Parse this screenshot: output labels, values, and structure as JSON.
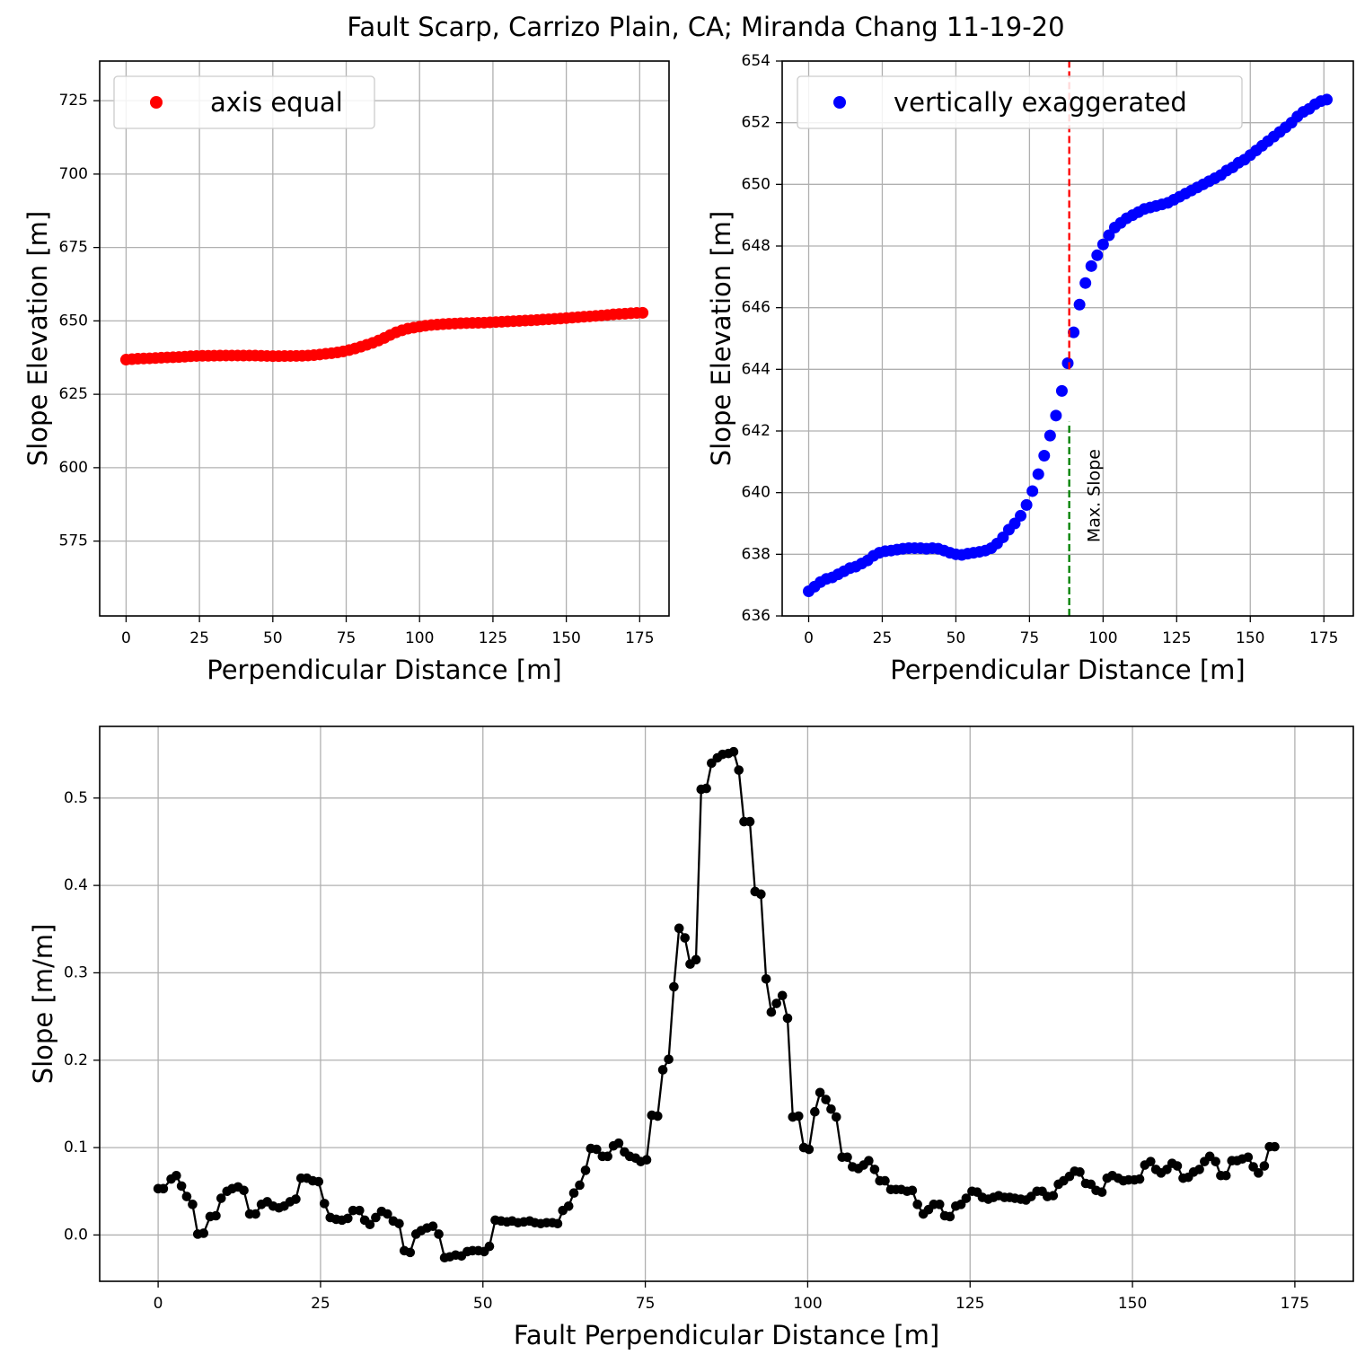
{
  "figure": {
    "title": "Fault Scarp, Carrizo Plain, CA; Miranda Chang 11-19-20"
  },
  "chart_data": [
    {
      "id": "axis-equal",
      "type": "scatter",
      "xlabel": "Perpendicular Distance [m]",
      "ylabel": "Slope Elevation [m]",
      "xlim": [
        -9,
        185
      ],
      "ylim": [
        549.5,
        738.5
      ],
      "xticks": [
        0,
        25,
        50,
        75,
        100,
        125,
        150,
        175
      ],
      "yticks": [
        575,
        600,
        625,
        650,
        675,
        700,
        725
      ],
      "grid": true,
      "legend": {
        "placement": "upper-left"
      },
      "series": [
        {
          "name": "axis equal",
          "color": "#ff0000",
          "profile": "elevation"
        }
      ]
    },
    {
      "id": "vertically-exaggerated",
      "type": "scatter",
      "xlabel": "Perpendicular Distance [m]",
      "ylabel": "Slope Elevation [m]",
      "xlim": [
        -9,
        185
      ],
      "ylim": [
        636,
        654
      ],
      "xticks": [
        0,
        25,
        50,
        75,
        100,
        125,
        150,
        175
      ],
      "yticks": [
        636,
        638,
        640,
        642,
        644,
        646,
        648,
        650,
        652,
        654
      ],
      "grid": true,
      "legend": {
        "placement": "upper-left"
      },
      "series": [
        {
          "name": "vertically exaggerated",
          "color": "#0000ff",
          "profile": "elevation"
        }
      ],
      "vlines": [
        {
          "x": 88.5,
          "y_from": 636,
          "y_to": 642.3,
          "color": "#008000",
          "style": "dashed"
        },
        {
          "x": 88.5,
          "y_from": 644.0,
          "y_to": 654,
          "color": "#ff0000",
          "style": "dashed"
        }
      ],
      "annotations": [
        {
          "text": "Max. Slope",
          "x": 97,
          "y": 639.9,
          "rotation": -90
        }
      ]
    },
    {
      "id": "slope",
      "type": "line",
      "xlabel": "Fault Perpendicular Distance [m]",
      "ylabel": "Slope [m/m]",
      "xlim": [
        -9,
        184
      ],
      "ylim": [
        -0.053,
        0.582
      ],
      "xticks": [
        0,
        25,
        50,
        75,
        100,
        125,
        150,
        175
      ],
      "yticks": [
        0.0,
        0.1,
        0.2,
        0.3,
        0.4,
        0.5
      ],
      "ytick_labels": [
        "0.0",
        "0.1",
        "0.2",
        "0.3",
        "0.4",
        "0.5"
      ],
      "grid": true,
      "color": "#000000",
      "marker": "circle",
      "points": [
        [
          0,
          0.053
        ],
        [
          0.8,
          0.053
        ],
        [
          2,
          0.064
        ],
        [
          2.8,
          0.068
        ],
        [
          3.6,
          0.056
        ],
        [
          4.4,
          0.044
        ],
        [
          5.3,
          0.035
        ],
        [
          6.1,
          0.001
        ],
        [
          7,
          0.002
        ],
        [
          8,
          0.021
        ],
        [
          8.9,
          0.022
        ],
        [
          9.7,
          0.042
        ],
        [
          10.6,
          0.05
        ],
        [
          11.4,
          0.053
        ],
        [
          12.3,
          0.055
        ],
        [
          13.2,
          0.051
        ],
        [
          14.1,
          0.024
        ],
        [
          15,
          0.024
        ],
        [
          15.9,
          0.035
        ],
        [
          16.8,
          0.038
        ],
        [
          17.7,
          0.033
        ],
        [
          18.6,
          0.031
        ],
        [
          19.4,
          0.033
        ],
        [
          20.3,
          0.038
        ],
        [
          21.2,
          0.041
        ],
        [
          22,
          0.065
        ],
        [
          22.9,
          0.065
        ],
        [
          23.8,
          0.062
        ],
        [
          24.7,
          0.061
        ],
        [
          25.6,
          0.036
        ],
        [
          26.5,
          0.02
        ],
        [
          27.4,
          0.018
        ],
        [
          28.3,
          0.017
        ],
        [
          29.2,
          0.019
        ],
        [
          30,
          0.028
        ],
        [
          31,
          0.028
        ],
        [
          31.8,
          0.017
        ],
        [
          32.6,
          0.012
        ],
        [
          33.5,
          0.02
        ],
        [
          34.4,
          0.027
        ],
        [
          35.3,
          0.024
        ],
        [
          36.2,
          0.016
        ],
        [
          37.1,
          0.013
        ],
        [
          37.9,
          -0.018
        ],
        [
          38.8,
          -0.02
        ],
        [
          39.7,
          0.001
        ],
        [
          40.5,
          0.005
        ],
        [
          41.4,
          0.008
        ],
        [
          42.3,
          0.01
        ],
        [
          43.2,
          0.001
        ],
        [
          44.1,
          -0.026
        ],
        [
          44.9,
          -0.025
        ],
        [
          45.8,
          -0.023
        ],
        [
          46.7,
          -0.024
        ],
        [
          47.6,
          -0.019
        ],
        [
          48.4,
          -0.018
        ],
        [
          49.3,
          -0.018
        ],
        [
          50.2,
          -0.019
        ],
        [
          51,
          -0.013
        ],
        [
          51.9,
          0.017
        ],
        [
          52.8,
          0.016
        ],
        [
          53.7,
          0.015
        ],
        [
          54.5,
          0.016
        ],
        [
          55.4,
          0.014
        ],
        [
          56.3,
          0.015
        ],
        [
          57.2,
          0.016
        ],
        [
          58,
          0.014
        ],
        [
          58.9,
          0.013
        ],
        [
          59.8,
          0.014
        ],
        [
          60.7,
          0.014
        ],
        [
          61.5,
          0.013
        ],
        [
          62.3,
          0.028
        ],
        [
          63.2,
          0.033
        ],
        [
          64,
          0.048
        ],
        [
          64.9,
          0.057
        ],
        [
          65.8,
          0.074
        ],
        [
          66.6,
          0.099
        ],
        [
          67.5,
          0.098
        ],
        [
          68.4,
          0.09
        ],
        [
          69.2,
          0.09
        ],
        [
          70.1,
          0.102
        ],
        [
          70.9,
          0.105
        ],
        [
          71.8,
          0.095
        ],
        [
          72.6,
          0.09
        ],
        [
          73.5,
          0.088
        ],
        [
          74.3,
          0.084
        ],
        [
          75.2,
          0.086
        ],
        [
          76,
          0.137
        ],
        [
          76.9,
          0.136
        ],
        [
          77.7,
          0.189
        ],
        [
          78.6,
          0.201
        ],
        [
          79.4,
          0.284
        ],
        [
          80.2,
          0.351
        ],
        [
          81.1,
          0.34
        ],
        [
          81.9,
          0.31
        ],
        [
          82.8,
          0.315
        ],
        [
          83.6,
          0.51
        ],
        [
          84.4,
          0.511
        ],
        [
          85.2,
          0.54
        ],
        [
          86.1,
          0.546
        ],
        [
          86.9,
          0.55
        ],
        [
          87.8,
          0.551
        ],
        [
          88.6,
          0.553
        ],
        [
          89.4,
          0.532
        ],
        [
          90.2,
          0.473
        ],
        [
          91.1,
          0.473
        ],
        [
          91.9,
          0.393
        ],
        [
          92.8,
          0.39
        ],
        [
          93.6,
          0.293
        ],
        [
          94.4,
          0.255
        ],
        [
          95.2,
          0.265
        ],
        [
          96.1,
          0.274
        ],
        [
          96.9,
          0.248
        ],
        [
          97.7,
          0.135
        ],
        [
          98.6,
          0.136
        ],
        [
          99.4,
          0.1
        ],
        [
          100.2,
          0.098
        ],
        [
          101.1,
          0.141
        ],
        [
          101.9,
          0.163
        ],
        [
          102.8,
          0.155
        ],
        [
          103.6,
          0.144
        ],
        [
          104.4,
          0.135
        ],
        [
          105.3,
          0.089
        ],
        [
          106.1,
          0.089
        ],
        [
          106.9,
          0.078
        ],
        [
          107.8,
          0.076
        ],
        [
          108.6,
          0.08
        ],
        [
          109.4,
          0.085
        ],
        [
          110.3,
          0.075
        ],
        [
          111.1,
          0.062
        ],
        [
          111.9,
          0.062
        ],
        [
          112.8,
          0.052
        ],
        [
          113.6,
          0.052
        ],
        [
          114.4,
          0.052
        ],
        [
          115.3,
          0.05
        ],
        [
          116.1,
          0.051
        ],
        [
          116.9,
          0.035
        ],
        [
          117.8,
          0.024
        ],
        [
          118.6,
          0.029
        ],
        [
          119.4,
          0.035
        ],
        [
          120.3,
          0.035
        ],
        [
          121.1,
          0.022
        ],
        [
          121.9,
          0.021
        ],
        [
          122.8,
          0.033
        ],
        [
          123.6,
          0.035
        ],
        [
          124.4,
          0.042
        ],
        [
          125.3,
          0.05
        ],
        [
          126.1,
          0.049
        ],
        [
          126.9,
          0.043
        ],
        [
          127.8,
          0.041
        ],
        [
          128.6,
          0.043
        ],
        [
          129.4,
          0.045
        ],
        [
          130.3,
          0.043
        ],
        [
          131.1,
          0.043
        ],
        [
          131.9,
          0.042
        ],
        [
          132.8,
          0.041
        ],
        [
          133.6,
          0.04
        ],
        [
          134.4,
          0.044
        ],
        [
          135.3,
          0.05
        ],
        [
          136.1,
          0.05
        ],
        [
          136.9,
          0.044
        ],
        [
          137.8,
          0.045
        ],
        [
          138.6,
          0.058
        ],
        [
          139.4,
          0.062
        ],
        [
          140.3,
          0.067
        ],
        [
          141.1,
          0.073
        ],
        [
          141.9,
          0.072
        ],
        [
          142.8,
          0.059
        ],
        [
          143.6,
          0.058
        ],
        [
          144.4,
          0.051
        ],
        [
          145.3,
          0.049
        ],
        [
          146.1,
          0.065
        ],
        [
          146.9,
          0.068
        ],
        [
          147.8,
          0.065
        ],
        [
          148.6,
          0.062
        ],
        [
          149.4,
          0.063
        ],
        [
          150.3,
          0.063
        ],
        [
          151.1,
          0.064
        ],
        [
          151.9,
          0.08
        ],
        [
          152.8,
          0.084
        ],
        [
          153.6,
          0.075
        ],
        [
          154.4,
          0.071
        ],
        [
          155.3,
          0.075
        ],
        [
          156.1,
          0.082
        ],
        [
          156.9,
          0.079
        ],
        [
          157.8,
          0.065
        ],
        [
          158.6,
          0.066
        ],
        [
          159.4,
          0.072
        ],
        [
          160.3,
          0.075
        ],
        [
          161.1,
          0.084
        ],
        [
          161.9,
          0.09
        ],
        [
          162.8,
          0.084
        ],
        [
          163.6,
          0.068
        ],
        [
          164.4,
          0.068
        ],
        [
          165.3,
          0.085
        ],
        [
          166.1,
          0.085
        ],
        [
          166.9,
          0.087
        ],
        [
          167.8,
          0.089
        ],
        [
          168.6,
          0.078
        ],
        [
          169.4,
          0.071
        ],
        [
          170.3,
          0.079
        ],
        [
          171.1,
          0.101
        ],
        [
          171.9,
          0.101
        ]
      ]
    }
  ],
  "elevation_profile": [
    [
      0,
      636.8
    ],
    [
      2,
      636.95
    ],
    [
      4,
      637.1
    ],
    [
      6,
      637.2
    ],
    [
      8,
      637.25
    ],
    [
      10,
      637.35
    ],
    [
      12,
      637.45
    ],
    [
      14,
      637.55
    ],
    [
      16,
      637.6
    ],
    [
      18,
      637.7
    ],
    [
      20,
      637.8
    ],
    [
      22,
      637.95
    ],
    [
      24,
      638.05
    ],
    [
      26,
      638.1
    ],
    [
      28,
      638.12
    ],
    [
      30,
      638.15
    ],
    [
      32,
      638.18
    ],
    [
      34,
      638.2
    ],
    [
      36,
      638.2
    ],
    [
      38,
      638.2
    ],
    [
      40,
      638.18
    ],
    [
      42,
      638.2
    ],
    [
      44,
      638.18
    ],
    [
      46,
      638.12
    ],
    [
      48,
      638.05
    ],
    [
      50,
      638.0
    ],
    [
      52,
      637.98
    ],
    [
      54,
      638.02
    ],
    [
      56,
      638.05
    ],
    [
      58,
      638.08
    ],
    [
      60,
      638.12
    ],
    [
      62,
      638.2
    ],
    [
      64,
      638.35
    ],
    [
      66,
      638.55
    ],
    [
      68,
      638.8
    ],
    [
      70,
      639.0
    ],
    [
      72,
      639.25
    ],
    [
      74,
      639.6
    ],
    [
      76,
      640.05
    ],
    [
      78,
      640.6
    ],
    [
      80,
      641.2
    ],
    [
      82,
      641.85
    ],
    [
      84,
      642.5
    ],
    [
      86,
      643.3
    ],
    [
      88,
      644.2
    ],
    [
      90,
      645.2
    ],
    [
      92,
      646.1
    ],
    [
      94,
      646.8
    ],
    [
      96,
      647.35
    ],
    [
      98,
      647.7
    ],
    [
      100,
      648.05
    ],
    [
      102,
      648.35
    ],
    [
      104,
      648.6
    ],
    [
      106,
      648.75
    ],
    [
      108,
      648.9
    ],
    [
      110,
      649.0
    ],
    [
      112,
      649.1
    ],
    [
      114,
      649.2
    ],
    [
      116,
      649.25
    ],
    [
      118,
      649.3
    ],
    [
      120,
      649.35
    ],
    [
      122,
      649.4
    ],
    [
      124,
      649.5
    ],
    [
      126,
      649.6
    ],
    [
      128,
      649.7
    ],
    [
      130,
      649.8
    ],
    [
      132,
      649.9
    ],
    [
      134,
      650.0
    ],
    [
      136,
      650.1
    ],
    [
      138,
      650.2
    ],
    [
      140,
      650.3
    ],
    [
      142,
      650.45
    ],
    [
      144,
      650.55
    ],
    [
      146,
      650.7
    ],
    [
      148,
      650.8
    ],
    [
      150,
      650.95
    ],
    [
      152,
      651.1
    ],
    [
      154,
      651.25
    ],
    [
      156,
      651.4
    ],
    [
      158,
      651.55
    ],
    [
      160,
      651.7
    ],
    [
      162,
      651.85
    ],
    [
      164,
      652.0
    ],
    [
      166,
      652.2
    ],
    [
      168,
      652.35
    ],
    [
      170,
      652.45
    ],
    [
      172,
      652.6
    ],
    [
      174,
      652.7
    ],
    [
      176,
      652.75
    ]
  ]
}
